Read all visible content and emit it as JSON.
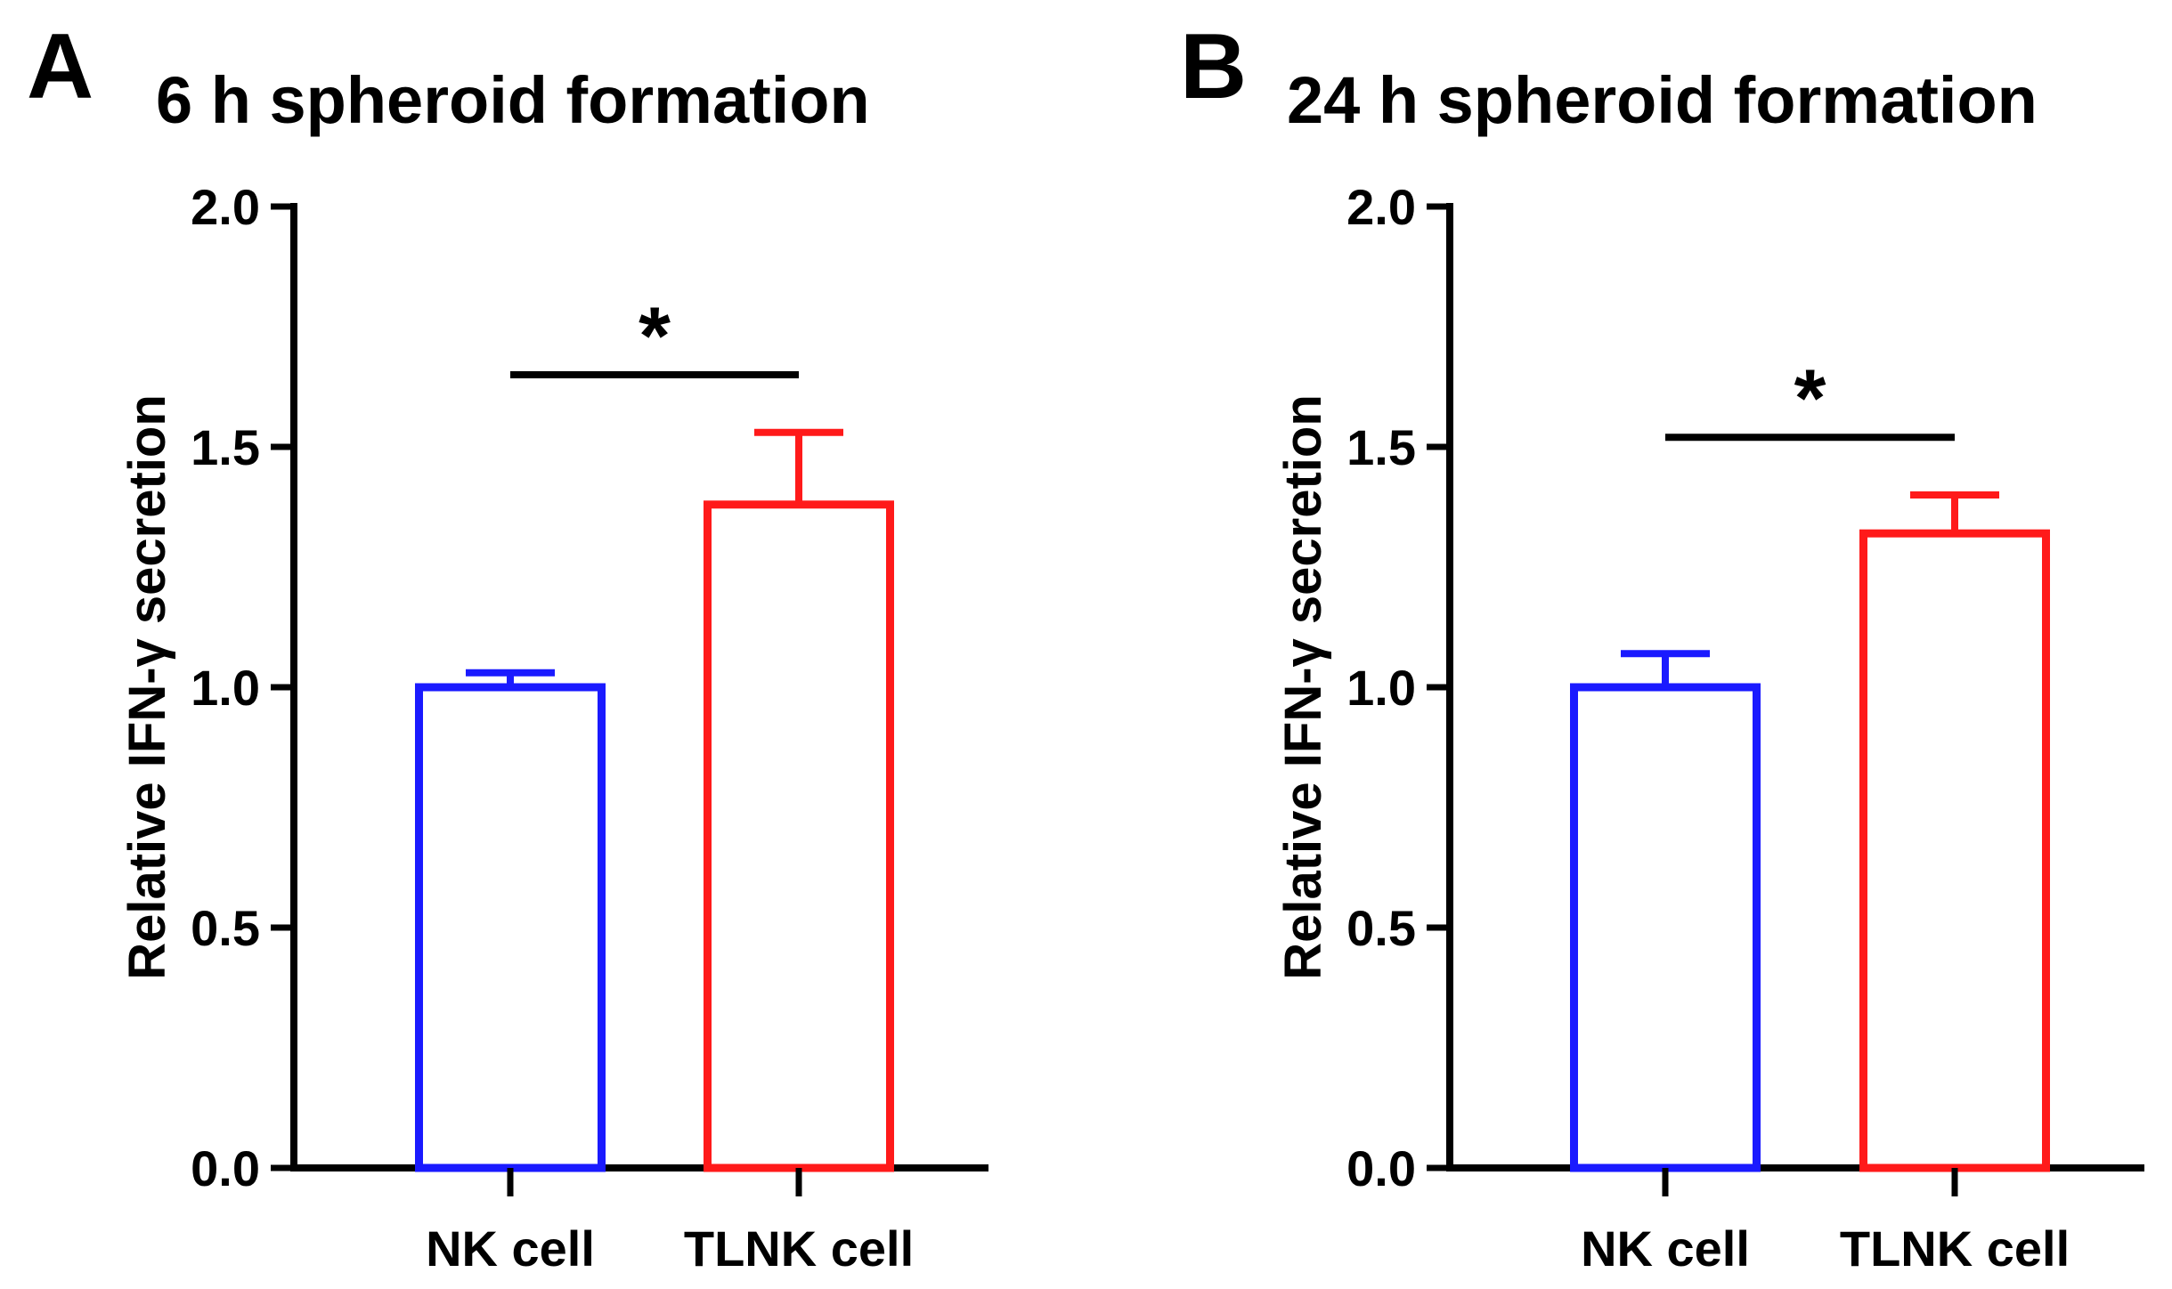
{
  "chart_data": [
    {
      "panel": "A",
      "type": "bar",
      "title": "6 h spheroid formation",
      "xlabel": "",
      "ylabel": "Relative IFN-γ secretion",
      "ylim": [
        0,
        2.0
      ],
      "yticks": [
        "0.0",
        "0.5",
        "1.0",
        "1.5",
        "2.0"
      ],
      "categories": [
        "NK cell",
        "TLNK cell"
      ],
      "values": [
        1.0,
        1.38
      ],
      "errors": [
        0.03,
        0.15
      ],
      "colors": [
        "#1a1aff",
        "#ff1a1a"
      ],
      "significance": {
        "label": "*",
        "y": 1.65
      }
    },
    {
      "panel": "B",
      "type": "bar",
      "title": "24 h spheroid formation",
      "xlabel": "",
      "ylabel": "Relative IFN-γ secretion",
      "ylim": [
        0,
        2.0
      ],
      "yticks": [
        "0.0",
        "0.5",
        "1.0",
        "1.5",
        "2.0"
      ],
      "categories": [
        "NK cell",
        "TLNK cell"
      ],
      "values": [
        1.0,
        1.32
      ],
      "errors": [
        0.07,
        0.08
      ],
      "colors": [
        "#1a1aff",
        "#ff1a1a"
      ],
      "significance": {
        "label": "*",
        "y": 1.52
      }
    }
  ]
}
